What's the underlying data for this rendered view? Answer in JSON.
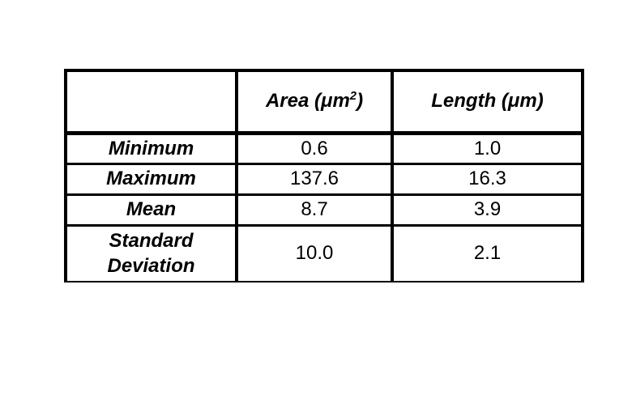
{
  "table": {
    "headers": {
      "corner": "",
      "area": {
        "prefix": "Area (μm",
        "sup": "2",
        "suffix": ")"
      },
      "length": "Length (μm)"
    },
    "rows": [
      {
        "label": "Minimum",
        "area": "0.6",
        "length": "1.0"
      },
      {
        "label": "Maximum",
        "area": "137.6",
        "length": "16.3"
      },
      {
        "label": "Mean",
        "area": "8.7",
        "length": "3.9"
      },
      {
        "label": "Standard\nDeviation",
        "area": "10.0",
        "length": "2.1"
      }
    ]
  },
  "chart_data": {
    "type": "table",
    "title": "",
    "columns": [
      "",
      "Area (μm2)",
      "Length (μm)"
    ],
    "rows": [
      [
        "Minimum",
        0.6,
        1.0
      ],
      [
        "Maximum",
        137.6,
        16.3
      ],
      [
        "Mean",
        8.7,
        3.9
      ],
      [
        "Standard Deviation",
        10.0,
        2.1
      ]
    ]
  },
  "colors": {
    "background": "#ffffff",
    "border": "#000000",
    "text": "#000000"
  }
}
